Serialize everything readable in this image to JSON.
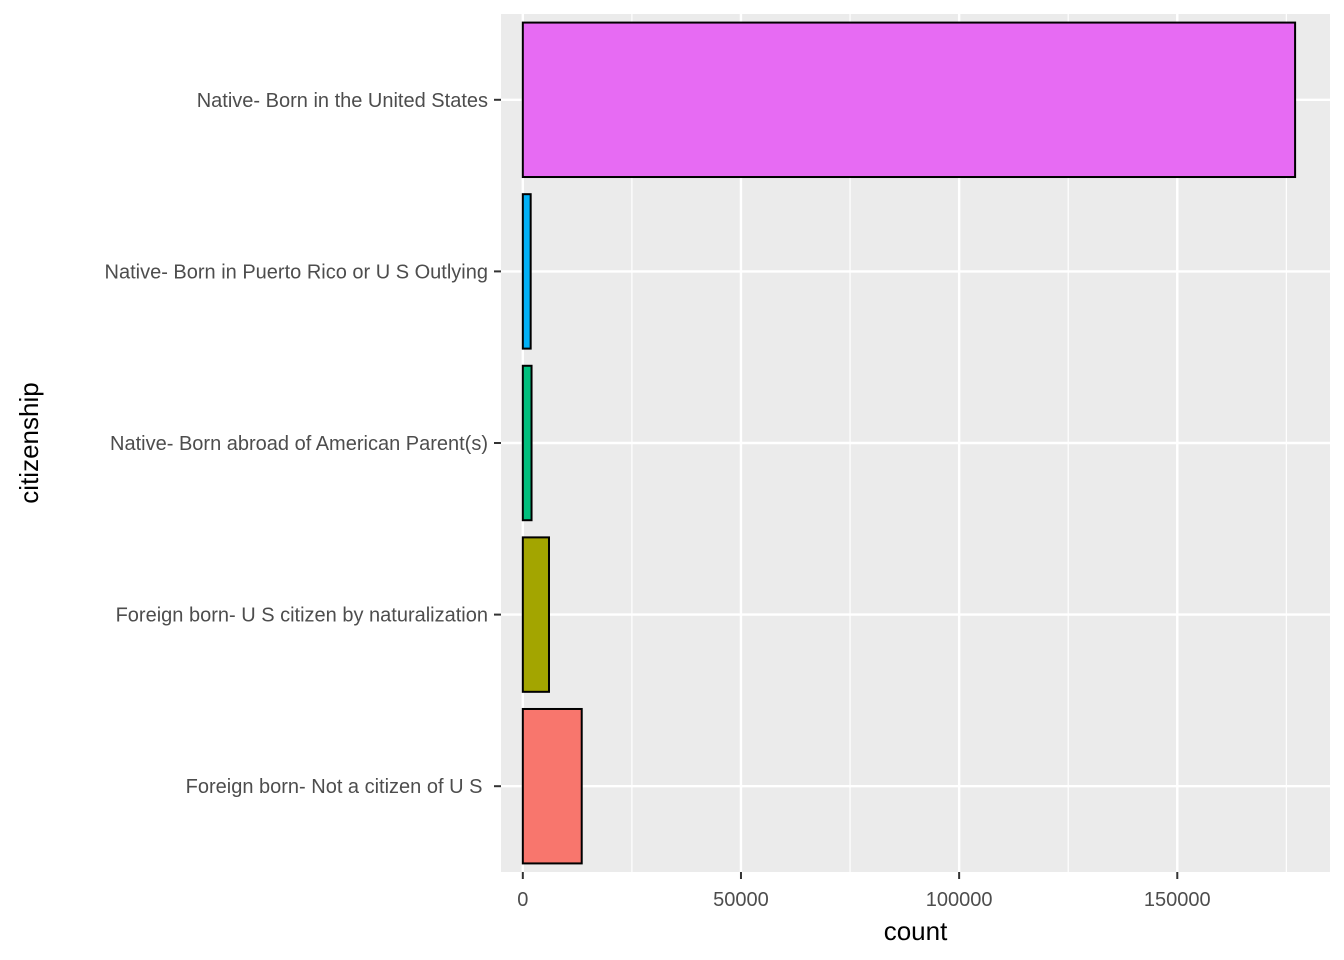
{
  "chart_data": {
    "type": "bar",
    "orientation": "horizontal",
    "xlabel": "count",
    "ylabel": "citizenship",
    "xlim": [
      -5000,
      185000
    ],
    "x_ticks": [
      0,
      50000,
      100000,
      150000
    ],
    "x_tick_labels": [
      "0",
      "50000",
      "100000",
      "150000"
    ],
    "grid": true,
    "legend": "none",
    "categories": [
      "Native- Born in the United States",
      "Native- Born in Puerto Rico or U S Outlying",
      "Native- Born abroad of American Parent(s)",
      "Foreign born- U S citizen by naturalization",
      "Foreign born- Not a citizen of U S "
    ],
    "values": [
      177000,
      1800,
      2000,
      6000,
      13500
    ],
    "colors": [
      "#E76BF3",
      "#00B0F6",
      "#00BF7D",
      "#A3A500",
      "#F8766D"
    ],
    "bar_outline": "#000000",
    "panel_background": "#EBEBEB",
    "grid_color": "#FFFFFF"
  }
}
